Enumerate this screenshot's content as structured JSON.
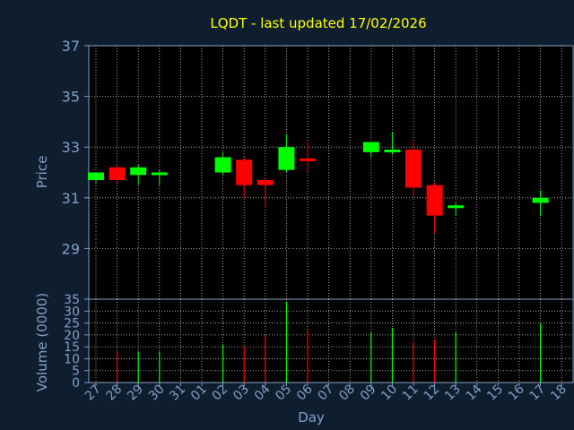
{
  "chart_data": [
    {
      "type": "candlestick",
      "title": "LQDT - last updated 17/02/2026",
      "ylabel": "Price",
      "ylim": [
        27,
        37
      ],
      "yticks": [
        29,
        31,
        33,
        35,
        37
      ],
      "grid": true,
      "up_color": "#00ff00",
      "down_color": "#ff0000",
      "x": [
        "27",
        "28",
        "29",
        "30",
        "31",
        "01",
        "02",
        "03",
        "04",
        "05",
        "06",
        "07",
        "08",
        "09",
        "10",
        "11",
        "12",
        "13",
        "14",
        "15",
        "16",
        "17",
        "18"
      ],
      "candles": [
        {
          "x": "27",
          "open": 31.7,
          "high": 32.0,
          "low": 31.6,
          "close": 32.0
        },
        {
          "x": "28",
          "open": 32.2,
          "high": 32.3,
          "low": 31.6,
          "close": 31.7
        },
        {
          "x": "29",
          "open": 31.9,
          "high": 32.3,
          "low": 31.5,
          "close": 32.2
        },
        {
          "x": "30",
          "open": 31.9,
          "high": 32.1,
          "low": 31.5,
          "close": 32.0
        },
        {
          "x": "02",
          "open": 32.0,
          "high": 32.8,
          "low": 31.9,
          "close": 32.6
        },
        {
          "x": "03",
          "open": 32.5,
          "high": 32.6,
          "low": 31.0,
          "close": 31.5
        },
        {
          "x": "04",
          "open": 31.7,
          "high": 31.8,
          "low": 30.6,
          "close": 31.5
        },
        {
          "x": "05",
          "open": 32.1,
          "high": 33.5,
          "low": 32.0,
          "close": 33.0
        },
        {
          "x": "06",
          "open": 32.55,
          "high": 33.2,
          "low": 32.0,
          "close": 32.5
        },
        {
          "x": "09",
          "open": 32.8,
          "high": 33.2,
          "low": 32.6,
          "close": 33.2
        },
        {
          "x": "10",
          "open": 32.8,
          "high": 33.6,
          "low": 32.7,
          "close": 32.9
        },
        {
          "x": "11",
          "open": 32.9,
          "high": 33.2,
          "low": 31.1,
          "close": 31.4
        },
        {
          "x": "12",
          "open": 31.5,
          "high": 31.6,
          "low": 29.6,
          "close": 30.3
        },
        {
          "x": "13",
          "open": 30.6,
          "high": 30.8,
          "low": 30.3,
          "close": 30.7
        },
        {
          "x": "17",
          "open": 30.8,
          "high": 31.3,
          "low": 30.3,
          "close": 31.0
        }
      ]
    },
    {
      "type": "bar",
      "ylabel": "Volume (0000)",
      "xlabel": "Day",
      "ylim": [
        0,
        35
      ],
      "yticks": [
        0,
        5,
        10,
        15,
        20,
        25,
        30,
        35
      ],
      "grid": true,
      "categories": [
        "27",
        "28",
        "29",
        "30",
        "31",
        "01",
        "02",
        "03",
        "04",
        "05",
        "06",
        "07",
        "08",
        "09",
        "10",
        "11",
        "12",
        "13",
        "14",
        "15",
        "16",
        "17",
        "18"
      ],
      "bars": [
        {
          "x": "28",
          "value": 13,
          "color": "#ff0000"
        },
        {
          "x": "29",
          "value": 13,
          "color": "#00ff00"
        },
        {
          "x": "30",
          "value": 13,
          "color": "#00ff00"
        },
        {
          "x": "02",
          "value": 16,
          "color": "#00ff00"
        },
        {
          "x": "03",
          "value": 15,
          "color": "#ff0000"
        },
        {
          "x": "04",
          "value": 20,
          "color": "#ff0000"
        },
        {
          "x": "05",
          "value": 34,
          "color": "#00ff00"
        },
        {
          "x": "06",
          "value": 22,
          "color": "#ff0000"
        },
        {
          "x": "09",
          "value": 21,
          "color": "#00ff00"
        },
        {
          "x": "10",
          "value": 23,
          "color": "#00ff00"
        },
        {
          "x": "11",
          "value": 17,
          "color": "#ff0000"
        },
        {
          "x": "12",
          "value": 18,
          "color": "#ff0000"
        },
        {
          "x": "13",
          "value": 21,
          "color": "#00ff00"
        },
        {
          "x": "17",
          "value": 25,
          "color": "#00ff00"
        }
      ]
    }
  ]
}
